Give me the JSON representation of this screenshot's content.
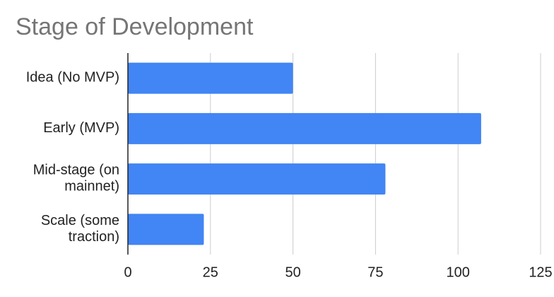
{
  "chart_data": {
    "type": "bar",
    "orientation": "horizontal",
    "title": "Stage of Development",
    "categories": [
      "Idea (No MVP)",
      "Early (MVP)",
      "Mid-stage (on mainnet)",
      "Scale (some traction)"
    ],
    "values": [
      50,
      107,
      78,
      23
    ],
    "color": "#4285f4",
    "xlim": [
      0,
      125
    ],
    "xticks": [
      0,
      25,
      50,
      75,
      100,
      125
    ],
    "grid": true
  }
}
